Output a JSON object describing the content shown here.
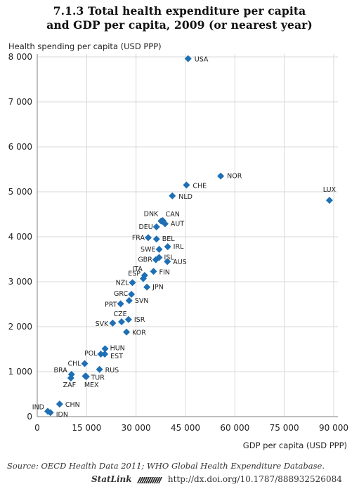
{
  "title_line1": "7.1.3  Total health expenditure per capita",
  "title_line2": "and GDP per capita, 2009 (or nearest year)",
  "source_text": "Source:  OECD Health Data 2011; WHO Global Health Expenditure Database.",
  "statlink": {
    "label": "StatLink",
    "url": "http://dx.doi.org/10.1787/888932526084"
  },
  "colors": {
    "marker": "#1f6fb4",
    "grid": "#d9d9d9",
    "axis": "#7f7f7f"
  },
  "chart_data": {
    "type": "scatter",
    "ylabel": "Health spending per capita (USD PPP)",
    "xlabel": "GDP per capita (USD PPP)",
    "xlim": [
      0,
      90000
    ],
    "ylim": [
      0,
      8000
    ],
    "x_ticks": [
      0,
      15000,
      30000,
      45000,
      60000,
      75000,
      90000
    ],
    "x_tick_labels": [
      "0",
      "15 000",
      "30 000",
      "45 000",
      "60 000",
      "75 000",
      "90 000"
    ],
    "y_ticks": [
      0,
      1000,
      2000,
      3000,
      4000,
      5000,
      6000,
      7000,
      8000
    ],
    "y_tick_labels": [
      "0",
      "1 000",
      "2 000",
      "3 000",
      "4 000",
      "5 000",
      "6 000",
      "7 000",
      "8 000"
    ],
    "grid": true,
    "points": [
      {
        "label": "USA",
        "x": 45800,
        "y": 7960
      },
      {
        "label": "NOR",
        "x": 55700,
        "y": 5350
      },
      {
        "label": "CHE",
        "x": 45300,
        "y": 5150
      },
      {
        "label": "NLD",
        "x": 41000,
        "y": 4910
      },
      {
        "label": "LUX",
        "x": 88700,
        "y": 4810
      },
      {
        "label": "DNK",
        "x": 37600,
        "y": 4350
      },
      {
        "label": "CAN",
        "x": 38100,
        "y": 4360
      },
      {
        "label": "AUT",
        "x": 38800,
        "y": 4290
      },
      {
        "label": "DEU",
        "x": 36200,
        "y": 4220
      },
      {
        "label": "FRA",
        "x": 33700,
        "y": 3980
      },
      {
        "label": "BEL",
        "x": 36200,
        "y": 3950
      },
      {
        "label": "IRL",
        "x": 39600,
        "y": 3780
      },
      {
        "label": "SWE",
        "x": 37000,
        "y": 3720
      },
      {
        "label": "ISL",
        "x": 37000,
        "y": 3540
      },
      {
        "label": "GBR",
        "x": 36000,
        "y": 3490
      },
      {
        "label": "AUS",
        "x": 39500,
        "y": 3450
      },
      {
        "label": "ITA",
        "x": 32600,
        "y": 3140
      },
      {
        "label": "FIN",
        "x": 35300,
        "y": 3230
      },
      {
        "label": "ESP",
        "x": 32200,
        "y": 3070
      },
      {
        "label": "NZL",
        "x": 28900,
        "y": 2980
      },
      {
        "label": "JPN",
        "x": 33300,
        "y": 2880
      },
      {
        "label": "GRC",
        "x": 28600,
        "y": 2720
      },
      {
        "label": "SVN",
        "x": 27900,
        "y": 2580
      },
      {
        "label": "PRT",
        "x": 25300,
        "y": 2510
      },
      {
        "label": "CZE",
        "x": 25600,
        "y": 2110
      },
      {
        "label": "SVK",
        "x": 22900,
        "y": 2080
      },
      {
        "label": "ISR",
        "x": 27700,
        "y": 2160
      },
      {
        "label": "KOR",
        "x": 27100,
        "y": 1880
      },
      {
        "label": "HUN",
        "x": 20600,
        "y": 1510
      },
      {
        "label": "POL",
        "x": 19300,
        "y": 1390
      },
      {
        "label": "EST",
        "x": 20500,
        "y": 1390
      },
      {
        "label": "CHL",
        "x": 14400,
        "y": 1180
      },
      {
        "label": "RUS",
        "x": 18900,
        "y": 1050
      },
      {
        "label": "BRA",
        "x": 10400,
        "y": 940
      },
      {
        "label": "TUR",
        "x": 14600,
        "y": 900
      },
      {
        "label": "ZAF",
        "x": 10200,
        "y": 860
      },
      {
        "label": "MEX",
        "x": 14900,
        "y": 890
      },
      {
        "label": "IND",
        "x": 3200,
        "y": 120
      },
      {
        "label": "CHN",
        "x": 6800,
        "y": 280
      },
      {
        "label": "IDN",
        "x": 4000,
        "y": 90
      }
    ]
  }
}
